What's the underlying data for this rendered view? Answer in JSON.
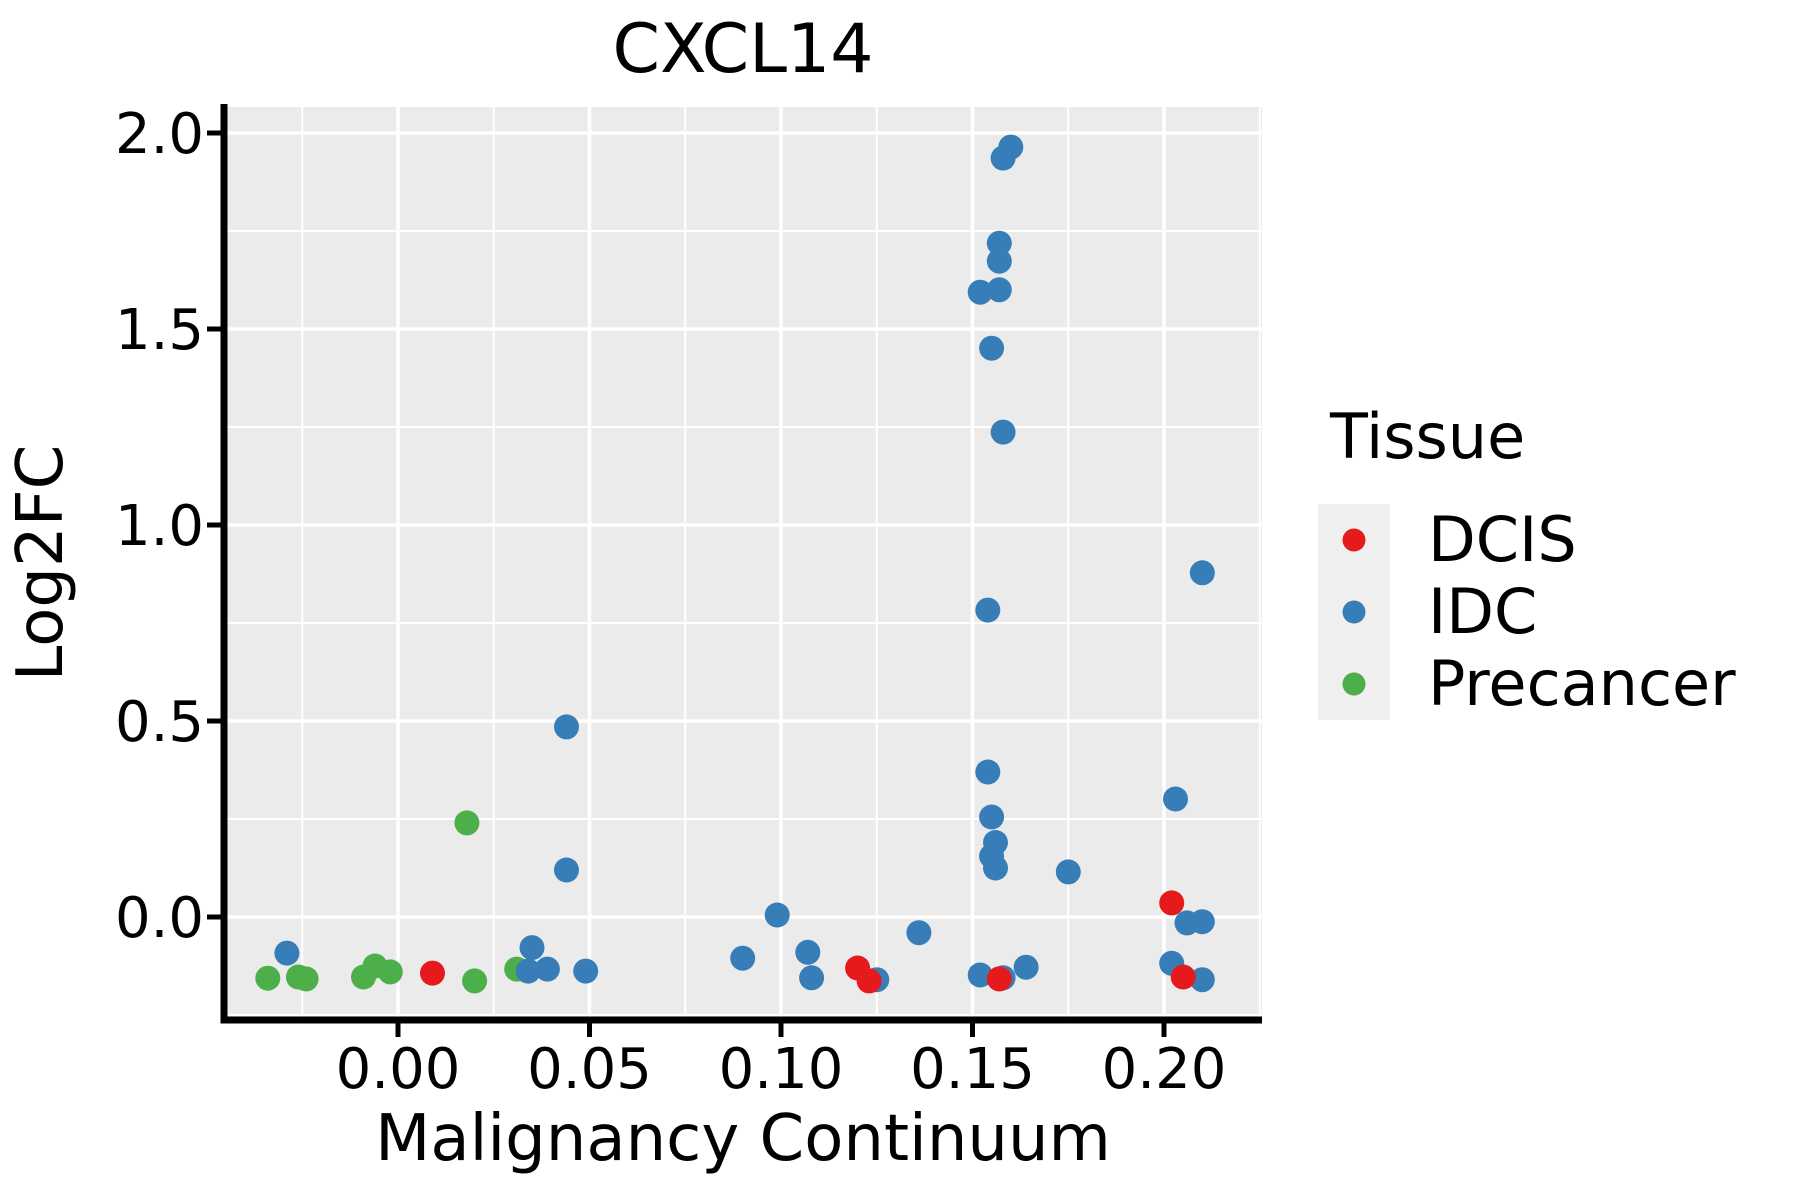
{
  "figure_title": "CXCL14",
  "chart_data": {
    "type": "scatter",
    "title": "CXCL14",
    "xlabel": "Malignancy Continuum",
    "ylabel": "Log2FC",
    "xlim": [
      -0.046,
      0.226
    ],
    "ylim": [
      -0.26,
      2.07
    ],
    "grid": {
      "background": "#EBEBEB",
      "major_color": "#FFFFFF",
      "minor_color": "#FFFFFF",
      "grid_on": true
    },
    "x_ticks": {
      "values": [
        0.0,
        0.05,
        0.1,
        0.15,
        0.2
      ],
      "labels": [
        "0.00",
        "0.05",
        "0.10",
        "0.15",
        "0.20"
      ]
    },
    "y_ticks": {
      "values": [
        2.0,
        1.5,
        1.0,
        0.5,
        0.0
      ],
      "labels": [
        "2.0",
        "1.5",
        "1.0",
        "0.5",
        "0.0"
      ]
    },
    "x_minor_ticks": [
      -0.025,
      0.025,
      0.075,
      0.125,
      0.175,
      0.225
    ],
    "y_minor_ticks": [
      -0.25,
      0.25,
      0.75,
      1.25,
      1.75
    ],
    "legend": {
      "title": "Tissue",
      "position": "right"
    },
    "series": [
      {
        "name": "DCIS",
        "color": "#E41A1C",
        "points": [
          [
            0.009,
            -0.143
          ],
          [
            0.12,
            -0.13
          ],
          [
            0.123,
            -0.163
          ],
          [
            0.157,
            -0.158
          ],
          [
            0.202,
            0.036
          ],
          [
            0.205,
            -0.153
          ]
        ]
      },
      {
        "name": "IDC",
        "color": "#377EB8",
        "points": [
          [
            -0.029,
            -0.092
          ],
          [
            0.034,
            -0.138
          ],
          [
            0.035,
            -0.078
          ],
          [
            0.039,
            -0.133
          ],
          [
            0.044,
            0.12
          ],
          [
            0.044,
            0.485
          ],
          [
            0.049,
            -0.138
          ],
          [
            0.09,
            -0.105
          ],
          [
            0.099,
            0.005
          ],
          [
            0.107,
            -0.09
          ],
          [
            0.108,
            -0.155
          ],
          [
            0.125,
            -0.16
          ],
          [
            0.136,
            -0.04
          ],
          [
            0.152,
            -0.148
          ],
          [
            0.152,
            1.594
          ],
          [
            0.154,
            0.37
          ],
          [
            0.154,
            0.783
          ],
          [
            0.155,
            0.155
          ],
          [
            0.155,
            0.255
          ],
          [
            0.155,
            1.451
          ],
          [
            0.156,
            0.125
          ],
          [
            0.156,
            0.19
          ],
          [
            0.157,
            1.6
          ],
          [
            0.157,
            1.673
          ],
          [
            0.157,
            1.719
          ],
          [
            0.158,
            -0.155
          ],
          [
            0.158,
            1.237
          ],
          [
            0.158,
            1.936
          ],
          [
            0.16,
            1.964
          ],
          [
            0.164,
            -0.128
          ],
          [
            0.175,
            0.115
          ],
          [
            0.202,
            -0.118
          ],
          [
            0.203,
            0.301
          ],
          [
            0.206,
            -0.015
          ],
          [
            0.21,
            -0.012
          ],
          [
            0.21,
            -0.16
          ],
          [
            0.21,
            0.878
          ]
        ]
      },
      {
        "name": "Precancer",
        "color": "#4DAF4A",
        "points": [
          [
            -0.034,
            -0.156
          ],
          [
            -0.026,
            -0.153
          ],
          [
            -0.024,
            -0.158
          ],
          [
            -0.009,
            -0.153
          ],
          [
            -0.006,
            -0.125
          ],
          [
            -0.002,
            -0.14
          ],
          [
            0.018,
            0.24
          ],
          [
            0.02,
            -0.163
          ],
          [
            0.031,
            -0.133
          ]
        ]
      }
    ]
  }
}
